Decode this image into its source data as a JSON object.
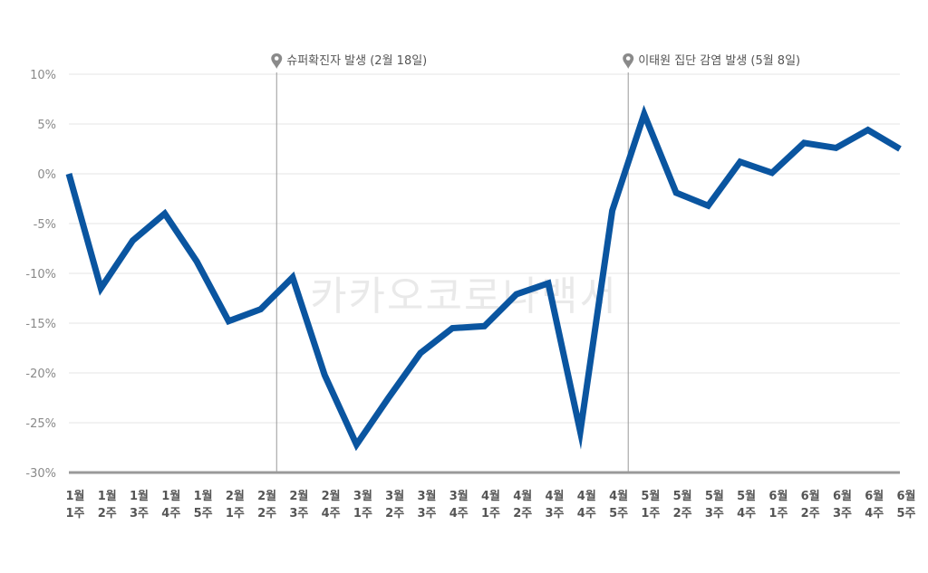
{
  "chart_data": {
    "type": "line",
    "title": "",
    "xlabel": "",
    "ylabel": "",
    "ylim": [
      -30,
      10
    ],
    "yticks": [
      10,
      5,
      0,
      -5,
      -10,
      -15,
      -20,
      -25,
      -30
    ],
    "ytick_suffix": "%",
    "grid": true,
    "line_color": "#0a55a0",
    "categories": [
      [
        "1월",
        "1주"
      ],
      [
        "1월",
        "2주"
      ],
      [
        "1월",
        "3주"
      ],
      [
        "1월",
        "4주"
      ],
      [
        "1월",
        "5주"
      ],
      [
        "2월",
        "1주"
      ],
      [
        "2월",
        "2주"
      ],
      [
        "2월",
        "3주"
      ],
      [
        "2월",
        "4주"
      ],
      [
        "3월",
        "1주"
      ],
      [
        "3월",
        "2주"
      ],
      [
        "3월",
        "3주"
      ],
      [
        "3월",
        "4주"
      ],
      [
        "4월",
        "1주"
      ],
      [
        "4월",
        "2주"
      ],
      [
        "4월",
        "3주"
      ],
      [
        "4월",
        "4주"
      ],
      [
        "4월",
        "5주"
      ],
      [
        "5월",
        "1주"
      ],
      [
        "5월",
        "2주"
      ],
      [
        "5월",
        "3주"
      ],
      [
        "5월",
        "4주"
      ],
      [
        "6월",
        "1주"
      ],
      [
        "6월",
        "2주"
      ],
      [
        "6월",
        "3주"
      ],
      [
        "6월",
        "4주"
      ],
      [
        "6월",
        "5주"
      ]
    ],
    "series": [
      {
        "values": [
          0,
          -11.5,
          -6.7,
          -4,
          -8.8,
          -14.8,
          -13.6,
          -10.4,
          -20.2,
          -27.2,
          -22.5,
          -18,
          -15.5,
          -15.3,
          -12.1,
          -11,
          -25.9,
          -3.7,
          6,
          -1.9,
          -3.2,
          1.2,
          0.1,
          3.1,
          2.6,
          4.4,
          2.5
        ]
      }
    ],
    "annotations": [
      {
        "after_index": 6,
        "label": "슈퍼확진자 발생 (2월 18일)"
      },
      {
        "after_index": 17,
        "label": "이태원 집단 감염 발생 (5월 8일)"
      }
    ],
    "watermark": "카카오코로나백서"
  }
}
